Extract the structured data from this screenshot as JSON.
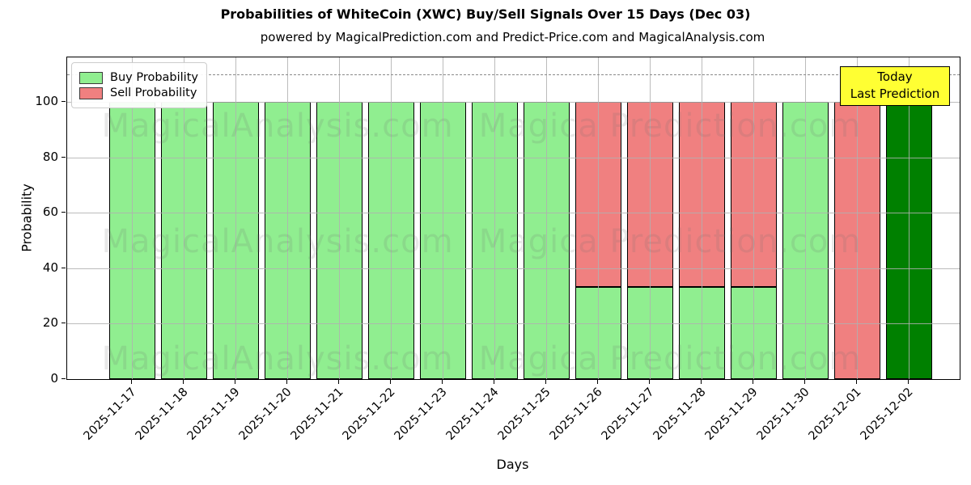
{
  "title": "Probabilities of WhiteCoin (XWC) Buy/Sell Signals Over 15 Days (Dec 03)",
  "subtitle": "powered by MagicalPrediction.com and Predict-Price.com and MagicalAnalysis.com",
  "legend": {
    "items": [
      {
        "label": "Buy Probability",
        "color": "#90EE90"
      },
      {
        "label": "Sell Probability",
        "color": "#F08080"
      }
    ]
  },
  "annotation": {
    "line1": "Today",
    "line2": "Last Prediction",
    "bg_color": "#FFFF33"
  },
  "watermarks": {
    "left_text": "MagicalAnalysis.com",
    "right_text": "Magica Prediction.com"
  },
  "chart_data": {
    "type": "bar",
    "stacked": true,
    "title": "Probabilities of WhiteCoin (XWC) Buy/Sell Signals Over 15 Days (Dec 03)",
    "subtitle": "powered by MagicalPrediction.com and Predict-Price.com and MagicalAnalysis.com",
    "xlabel": "Days",
    "ylabel": "Probability",
    "categories": [
      "2025-11-17",
      "2025-11-18",
      "2025-11-19",
      "2025-11-20",
      "2025-11-21",
      "2025-11-22",
      "2025-11-23",
      "2025-11-24",
      "2025-11-25",
      "2025-11-26",
      "2025-11-27",
      "2025-11-28",
      "2025-11-29",
      "2025-11-30",
      "2025-12-01",
      "2025-12-02"
    ],
    "series": [
      {
        "name": "Buy Probability",
        "color": "#90EE90",
        "values": [
          100,
          100,
          100,
          100,
          100,
          100,
          100,
          100,
          100,
          33.33,
          33.33,
          33.33,
          33.33,
          100,
          0,
          100
        ]
      },
      {
        "name": "Sell Probability",
        "color": "#F08080",
        "values": [
          0,
          0,
          0,
          0,
          0,
          0,
          0,
          0,
          0,
          66.67,
          66.67,
          66.67,
          66.67,
          0,
          100,
          0
        ]
      }
    ],
    "today_bar": {
      "category": "2025-12-02",
      "index": 15,
      "color": "#008000",
      "label": "Today Last Prediction"
    },
    "yticks": [
      0,
      20,
      40,
      60,
      80,
      100
    ],
    "ylim": [
      0,
      116
    ],
    "dashed_line_y": 110,
    "grid": true,
    "legend_position": "upper left",
    "bar_edge_color": "#000000"
  }
}
